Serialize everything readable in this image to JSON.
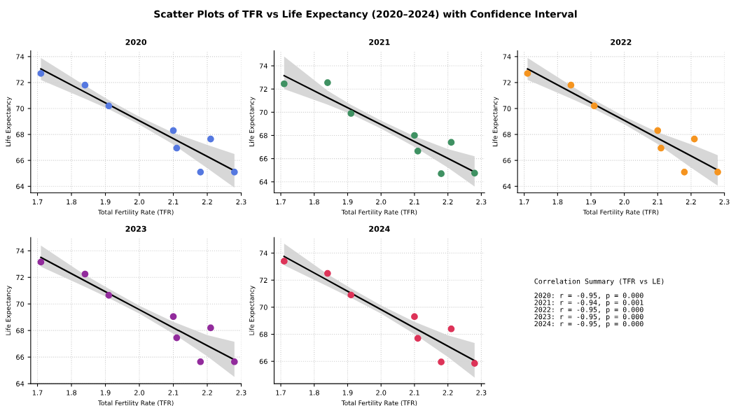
{
  "chart_data": [
    {
      "type": "scatter",
      "subtitle": "Scatter Plots of TFR vs Life Expectancy (2020–2024) with Confidence Interval",
      "title": "2020",
      "xlabel": "Total Fertility Rate (TFR)",
      "ylabel": "Life Expectancy",
      "x": [
        1.71,
        1.84,
        1.91,
        2.1,
        2.11,
        2.18,
        2.21,
        2.28
      ],
      "xlim": [
        1.68,
        2.3
      ],
      "xticks": [
        {
          "value": 1.7,
          "label": "1.7"
        },
        {
          "value": 1.8,
          "label": "1.8"
        },
        {
          "value": 1.9,
          "label": "1.9"
        },
        {
          "value": 2.0,
          "label": "2.0"
        },
        {
          "value": 2.1,
          "label": "2.1"
        },
        {
          "value": 2.2,
          "label": "2.2"
        },
        {
          "value": 2.3,
          "label": "2.3"
        }
      ],
      "ylim": [
        63.5,
        74.45
      ],
      "yticks": [
        64,
        66,
        68,
        70,
        72,
        74
      ],
      "grid": true,
      "series": [
        {
          "type": "scatter",
          "marker": "circle",
          "color": "#5578e0",
          "values": [
            72.7,
            71.8,
            70.2,
            68.3,
            66.95,
            65.1,
            67.65,
            65.1
          ]
        },
        {
          "type": "line",
          "color": "#000000",
          "x": [
            1.71,
            1.84,
            1.91,
            2.0,
            2.1,
            2.2,
            2.28
          ],
          "values": [
            73.05,
            71.26,
            70.3,
            69.06,
            67.68,
            66.3,
            65.2
          ],
          "lower": [
            72.2,
            70.76,
            69.95,
            68.76,
            67.23,
            65.4,
            63.9
          ],
          "upper": [
            73.9,
            71.76,
            70.65,
            69.36,
            68.13,
            67.2,
            66.5
          ]
        }
      ]
    },
    {
      "type": "scatter",
      "title": "2021",
      "xlabel": "Total Fertility Rate (TFR)",
      "ylabel": "Life Expectancy",
      "x": [
        1.71,
        1.84,
        1.91,
        2.1,
        2.11,
        2.18,
        2.21,
        2.28
      ],
      "xlim": [
        1.68,
        2.31
      ],
      "xticks": [
        {
          "value": 1.7,
          "label": "1.7"
        },
        {
          "value": 1.8,
          "label": "1.8"
        },
        {
          "value": 1.9,
          "label": "1.9"
        },
        {
          "value": 2.0,
          "label": "2.0"
        },
        {
          "value": 2.1,
          "label": "2.1"
        },
        {
          "value": 2.2,
          "label": "2.2"
        },
        {
          "value": 2.3,
          "label": "2.3"
        }
      ],
      "ylim": [
        63.05,
        75.3
      ],
      "yticks": [
        64,
        66,
        68,
        70,
        72,
        74
      ],
      "grid": true,
      "series": [
        {
          "type": "scatter",
          "marker": "circle",
          "color": "#3f9162",
          "values": [
            72.45,
            72.55,
            69.9,
            68.0,
            66.65,
            64.7,
            67.4,
            64.75
          ]
        },
        {
          "type": "line",
          "color": "#000000",
          "x": [
            1.71,
            1.84,
            1.91,
            2.0,
            2.1,
            2.2,
            2.28
          ],
          "values": [
            73.15,
            71.26,
            70.24,
            68.93,
            67.47,
            66.02,
            64.85
          ],
          "lower": [
            72.0,
            70.66,
            69.84,
            68.58,
            67.02,
            65.22,
            63.6
          ],
          "upper": [
            74.8,
            71.86,
            70.64,
            69.28,
            67.92,
            66.82,
            66.2
          ]
        }
      ]
    },
    {
      "type": "scatter",
      "title": "2022",
      "xlabel": "Total Fertility Rate (TFR)",
      "ylabel": "Life Expectancy",
      "x": [
        1.71,
        1.84,
        1.91,
        2.1,
        2.11,
        2.18,
        2.21,
        2.28
      ],
      "xlim": [
        1.68,
        2.3
      ],
      "xticks": [
        {
          "value": 1.7,
          "label": "1.7"
        },
        {
          "value": 1.8,
          "label": "1.8"
        },
        {
          "value": 1.9,
          "label": "1.9"
        },
        {
          "value": 2.0,
          "label": "2.0"
        },
        {
          "value": 2.1,
          "label": "2.1"
        },
        {
          "value": 2.2,
          "label": "2.2"
        },
        {
          "value": 2.3,
          "label": "2.3"
        }
      ],
      "ylim": [
        63.5,
        74.45
      ],
      "yticks": [
        64,
        66,
        68,
        70,
        72,
        74
      ],
      "grid": true,
      "series": [
        {
          "type": "scatter",
          "marker": "circle",
          "color": "#f5941f",
          "values": [
            72.7,
            71.8,
            70.2,
            68.3,
            66.95,
            65.1,
            67.65,
            65.1
          ]
        },
        {
          "type": "line",
          "color": "#000000",
          "x": [
            1.71,
            1.84,
            1.91,
            2.0,
            2.1,
            2.2,
            2.28
          ],
          "values": [
            73.05,
            71.27,
            70.31,
            69.08,
            67.71,
            66.34,
            65.25
          ],
          "lower": [
            72.2,
            70.77,
            69.96,
            68.78,
            67.26,
            65.44,
            64.05
          ],
          "upper": [
            73.9,
            71.77,
            70.66,
            69.38,
            68.16,
            67.24,
            66.4
          ]
        }
      ]
    },
    {
      "type": "scatter",
      "title": "2023",
      "xlabel": "Total Fertility Rate (TFR)",
      "ylabel": "Life Expectancy",
      "x": [
        1.71,
        1.84,
        1.91,
        2.1,
        2.11,
        2.18,
        2.21,
        2.28
      ],
      "xlim": [
        1.68,
        2.3
      ],
      "xticks": [
        {
          "value": 1.7,
          "label": "1.7"
        },
        {
          "value": 1.8,
          "label": "1.8"
        },
        {
          "value": 1.9,
          "label": "1.9"
        },
        {
          "value": 2.0,
          "label": "2.0"
        },
        {
          "value": 2.1,
          "label": "2.1"
        },
        {
          "value": 2.2,
          "label": "2.2"
        },
        {
          "value": 2.3,
          "label": "2.3"
        }
      ],
      "ylim": [
        64,
        75
      ],
      "yticks": [
        64,
        66,
        68,
        70,
        72,
        74
      ],
      "grid": true,
      "series": [
        {
          "type": "scatter",
          "marker": "circle",
          "color": "#922b9c",
          "values": [
            73.15,
            72.25,
            70.65,
            69.05,
            67.45,
            65.65,
            68.2,
            65.65
          ]
        },
        {
          "type": "line",
          "color": "#000000",
          "x": [
            1.71,
            1.84,
            1.91,
            2.0,
            2.1,
            2.2,
            2.28
          ],
          "values": [
            73.5,
            71.74,
            70.79,
            69.57,
            68.21,
            66.86,
            65.8
          ],
          "lower": [
            72.8,
            71.29,
            70.44,
            69.27,
            67.76,
            66.06,
            64.5
          ],
          "upper": [
            74.4,
            72.19,
            71.14,
            69.87,
            68.66,
            67.66,
            67.15
          ]
        }
      ]
    },
    {
      "type": "scatter",
      "title": "2024",
      "xlabel": "Total Fertility Rate (TFR)",
      "ylabel": "Life Expectancy",
      "x": [
        1.71,
        1.84,
        1.91,
        2.1,
        2.11,
        2.18,
        2.21,
        2.28
      ],
      "xlim": [
        1.68,
        2.31
      ],
      "xticks": [
        {
          "value": 1.7,
          "label": "1.7"
        },
        {
          "value": 1.8,
          "label": "1.8"
        },
        {
          "value": 1.9,
          "label": "1.9"
        },
        {
          "value": 2.0,
          "label": "2.0"
        },
        {
          "value": 2.1,
          "label": "2.1"
        },
        {
          "value": 2.2,
          "label": "2.2"
        },
        {
          "value": 2.3,
          "label": "2.3"
        }
      ],
      "ylim": [
        64.35,
        75.15
      ],
      "yticks": [
        66,
        68,
        70,
        72,
        74
      ],
      "grid": true,
      "series": [
        {
          "type": "scatter",
          "marker": "circle",
          "color": "#dd3358",
          "values": [
            73.4,
            72.5,
            70.9,
            69.3,
            67.7,
            65.95,
            68.4,
            65.85
          ]
        },
        {
          "type": "line",
          "color": "#000000",
          "x": [
            1.71,
            1.84,
            1.91,
            2.0,
            2.1,
            2.2,
            2.28
          ],
          "values": [
            73.75,
            71.99,
            71.04,
            69.83,
            68.47,
            67.12,
            66.05
          ],
          "lower": [
            73.1,
            71.54,
            70.69,
            69.53,
            68.02,
            66.32,
            64.8
          ],
          "upper": [
            74.7,
            72.44,
            71.39,
            70.13,
            68.92,
            67.92,
            67.35
          ]
        }
      ]
    },
    {
      "type": "other",
      "title": "Correlation Summary (TFR vs LE)",
      "annotations": [
        "2020: r = -0.95, p = 0.000",
        "2021: r = -0.94, p = 0.001",
        "2022: r = -0.95, p = 0.000",
        "2023: r = -0.95, p = 0.000",
        "2024: r = -0.95, p = 0.000"
      ]
    }
  ]
}
